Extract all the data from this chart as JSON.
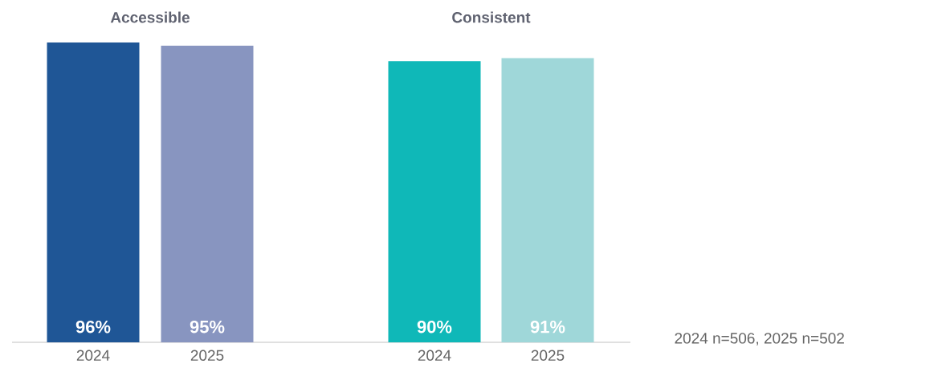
{
  "chart_data": [
    {
      "type": "bar",
      "title": "Accessible",
      "categories": [
        "2024",
        "2025"
      ],
      "values": [
        96,
        95
      ],
      "colors": [
        "#1f5696",
        "#8895c0"
      ],
      "value_labels": [
        "96%",
        "95%"
      ]
    },
    {
      "type": "bar",
      "title": "Consistent",
      "categories": [
        "2024",
        "2025"
      ],
      "values": [
        90,
        91
      ],
      "colors": [
        "#0fb8b8",
        "#9fd7d9"
      ],
      "value_labels": [
        "90%",
        "91%"
      ],
      "annotations": [
        "2024 n=506, 2025 n=502"
      ]
    }
  ]
}
